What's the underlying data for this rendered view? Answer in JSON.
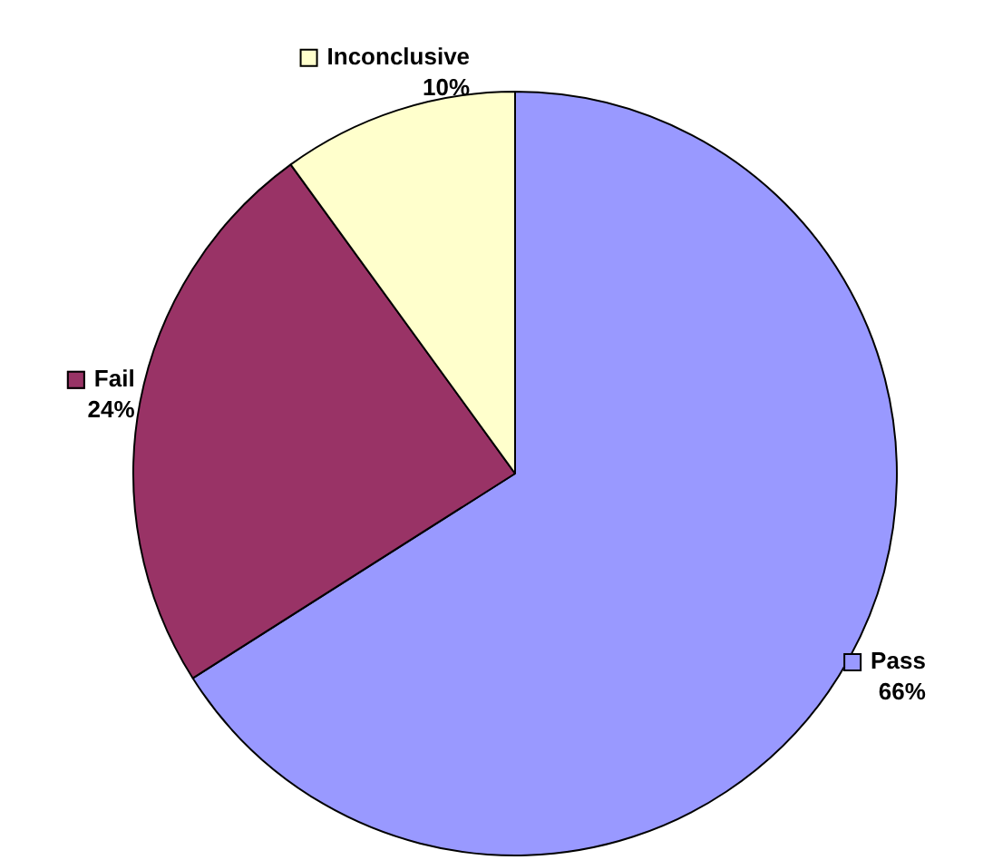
{
  "chart_data": {
    "type": "pie",
    "categories": [
      "Pass",
      "Fail",
      "Inconclusive"
    ],
    "values": [
      66,
      24,
      10
    ],
    "value_labels": [
      "66%",
      "24%",
      "10%"
    ],
    "colors": [
      "#9999ff",
      "#993366",
      "#ffffcc"
    ],
    "legend": "top"
  }
}
